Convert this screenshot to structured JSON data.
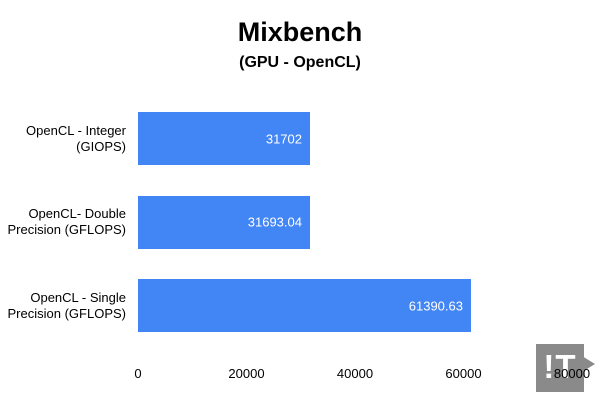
{
  "header": {
    "title": "Mixbench",
    "subtitle": "(GPU - OpenCL)"
  },
  "chart_data": {
    "type": "bar",
    "orientation": "horizontal",
    "title": "Mixbench",
    "subtitle": "(GPU - OpenCL)",
    "categories": [
      [
        "OpenCL - Integer",
        "(GIOPS)"
      ],
      [
        "OpenCL- Double",
        "Precision (GFLOPS)"
      ],
      [
        "OpenCL - Single",
        "Precision (GFLOPS)"
      ]
    ],
    "values": [
      31702,
      31693.04,
      61390.63
    ],
    "value_labels": [
      "31702",
      "31693.04",
      "61390.63"
    ],
    "xlim": [
      0,
      80000
    ],
    "x_ticks": [
      0,
      20000,
      40000,
      60000,
      80000
    ],
    "x_tick_labels": [
      "0",
      "20000",
      "40000",
      "60000",
      "80000"
    ],
    "bar_color": "#4285f4",
    "value_label_color": "#ffffff",
    "axis_text_color": "#000000",
    "grid": false,
    "legend": "none"
  },
  "watermark": {
    "text": "!T",
    "color": "#8a8a8a"
  }
}
